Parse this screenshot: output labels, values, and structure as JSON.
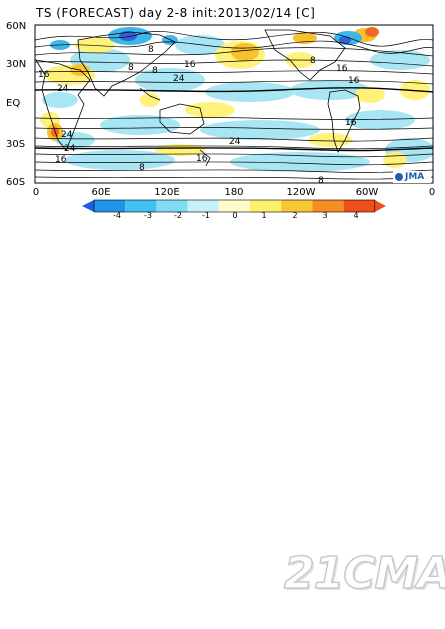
{
  "map": {
    "title": "TS (FORECAST) day 2-8 init:2013/02/14  [C]",
    "lat_labels": [
      "60N",
      "30N",
      "EQ",
      "30S",
      "60S"
    ],
    "lon_labels": [
      "0",
      "60E",
      "120E",
      "180",
      "120W",
      "60W",
      "0"
    ],
    "contour_labels": [
      "8",
      "8",
      "16",
      "24",
      "16",
      "16",
      "24",
      "8",
      "16",
      "8",
      "16",
      "24",
      "24",
      "24",
      "16",
      "8",
      "8",
      "16"
    ],
    "anomaly_colors": {
      "strong_negative": "#2f63d9",
      "negative": "#3fb5ea",
      "weak_negative": "#a8e6f4",
      "weak_positive": "#fff27a",
      "positive": "#f7c22e",
      "strong_positive": "#ef6a1f"
    },
    "logo": "JMA"
  },
  "colorbar": {
    "labels": [
      "-4",
      "-3",
      "-2",
      "-1",
      "0",
      "1",
      "2",
      "3",
      "4"
    ],
    "colors": [
      "#1e5fe0",
      "#1f93ea",
      "#3fc0ee",
      "#7fdcf2",
      "#c6f1f8",
      "#fefcc8",
      "#fff06a",
      "#f9c533",
      "#f58d23",
      "#ef4f1a"
    ]
  },
  "watermark": "21CMA"
}
